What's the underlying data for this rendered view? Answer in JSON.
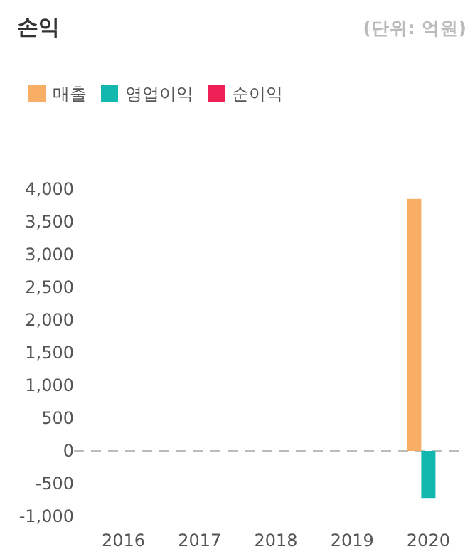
{
  "chart_data": {
    "type": "bar",
    "title": "손익",
    "annotations": [
      "(단위: 억원)"
    ],
    "categories": [
      "2016",
      "2017",
      "2018",
      "2019",
      "2020"
    ],
    "series": [
      {
        "name": "매출",
        "color": "#f8ae64",
        "values": [
          null,
          null,
          null,
          null,
          3850
        ]
      },
      {
        "name": "영업이익",
        "color": "#12b8ad",
        "values": [
          null,
          null,
          null,
          null,
          -720
        ]
      },
      {
        "name": "순이익",
        "color": "#ee1f55",
        "values": [
          null,
          null,
          null,
          null,
          null
        ]
      }
    ],
    "ylim": [
      -1000,
      4000
    ],
    "yticks": [
      {
        "value": -1000,
        "label": "-1,000"
      },
      {
        "value": -500,
        "label": "-500"
      },
      {
        "value": 0,
        "label": "0"
      },
      {
        "value": 500,
        "label": "500"
      },
      {
        "value": 1000,
        "label": "1,000"
      },
      {
        "value": 1500,
        "label": "1,500"
      },
      {
        "value": 2000,
        "label": "2,000"
      },
      {
        "value": 2500,
        "label": "2,500"
      },
      {
        "value": 3000,
        "label": "3,000"
      },
      {
        "value": 3500,
        "label": "3,500"
      },
      {
        "value": 4000,
        "label": "4,000"
      }
    ],
    "ref_lines": [
      {
        "axis": "y",
        "value": 0,
        "color": "#bbbbbb",
        "line_style": "dashed"
      }
    ],
    "legend": "top left"
  }
}
